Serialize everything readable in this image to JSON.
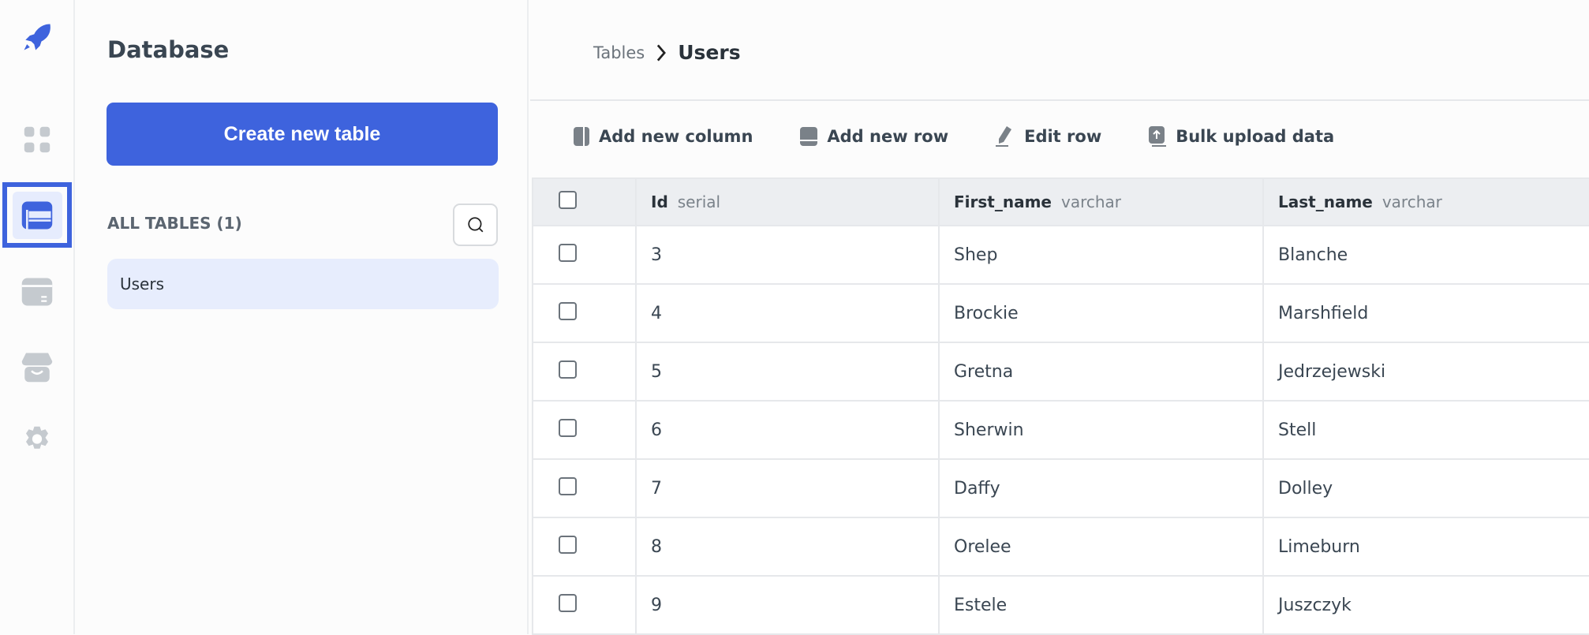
{
  "rail": {
    "items": [
      {
        "icon": "rocket-logo-icon"
      },
      {
        "icon": "apps-grid-icon"
      },
      {
        "icon": "database-table-icon",
        "active": true
      },
      {
        "icon": "storage-drawer-icon"
      },
      {
        "icon": "marketplace-store-icon"
      },
      {
        "icon": "gear-icon"
      }
    ],
    "accent": "#3e63dd"
  },
  "sidebar": {
    "title": "Database",
    "create_button": "Create new table",
    "section_label": "ALL TABLES (1)",
    "tables": [
      "Users"
    ]
  },
  "breadcrumb": {
    "parent": "Tables",
    "current": "Users"
  },
  "toolbar": {
    "add_column": "Add new column",
    "add_row": "Add new row",
    "edit_row": "Edit row",
    "bulk_upload": "Bulk upload data"
  },
  "table": {
    "columns": [
      {
        "name": "Id",
        "type": "serial"
      },
      {
        "name": "First_name",
        "type": "varchar"
      },
      {
        "name": "Last_name",
        "type": "varchar"
      }
    ],
    "rows": [
      [
        "3",
        "Shep",
        "Blanche"
      ],
      [
        "4",
        "Brockie",
        "Marshfield"
      ],
      [
        "5",
        "Gretna",
        "Jedrzejewski"
      ],
      [
        "6",
        "Sherwin",
        "Stell"
      ],
      [
        "7",
        "Daffy",
        "Dolley"
      ],
      [
        "8",
        "Orelee",
        "Limeburn"
      ],
      [
        "9",
        "Estele",
        "Juszczyk"
      ]
    ]
  }
}
